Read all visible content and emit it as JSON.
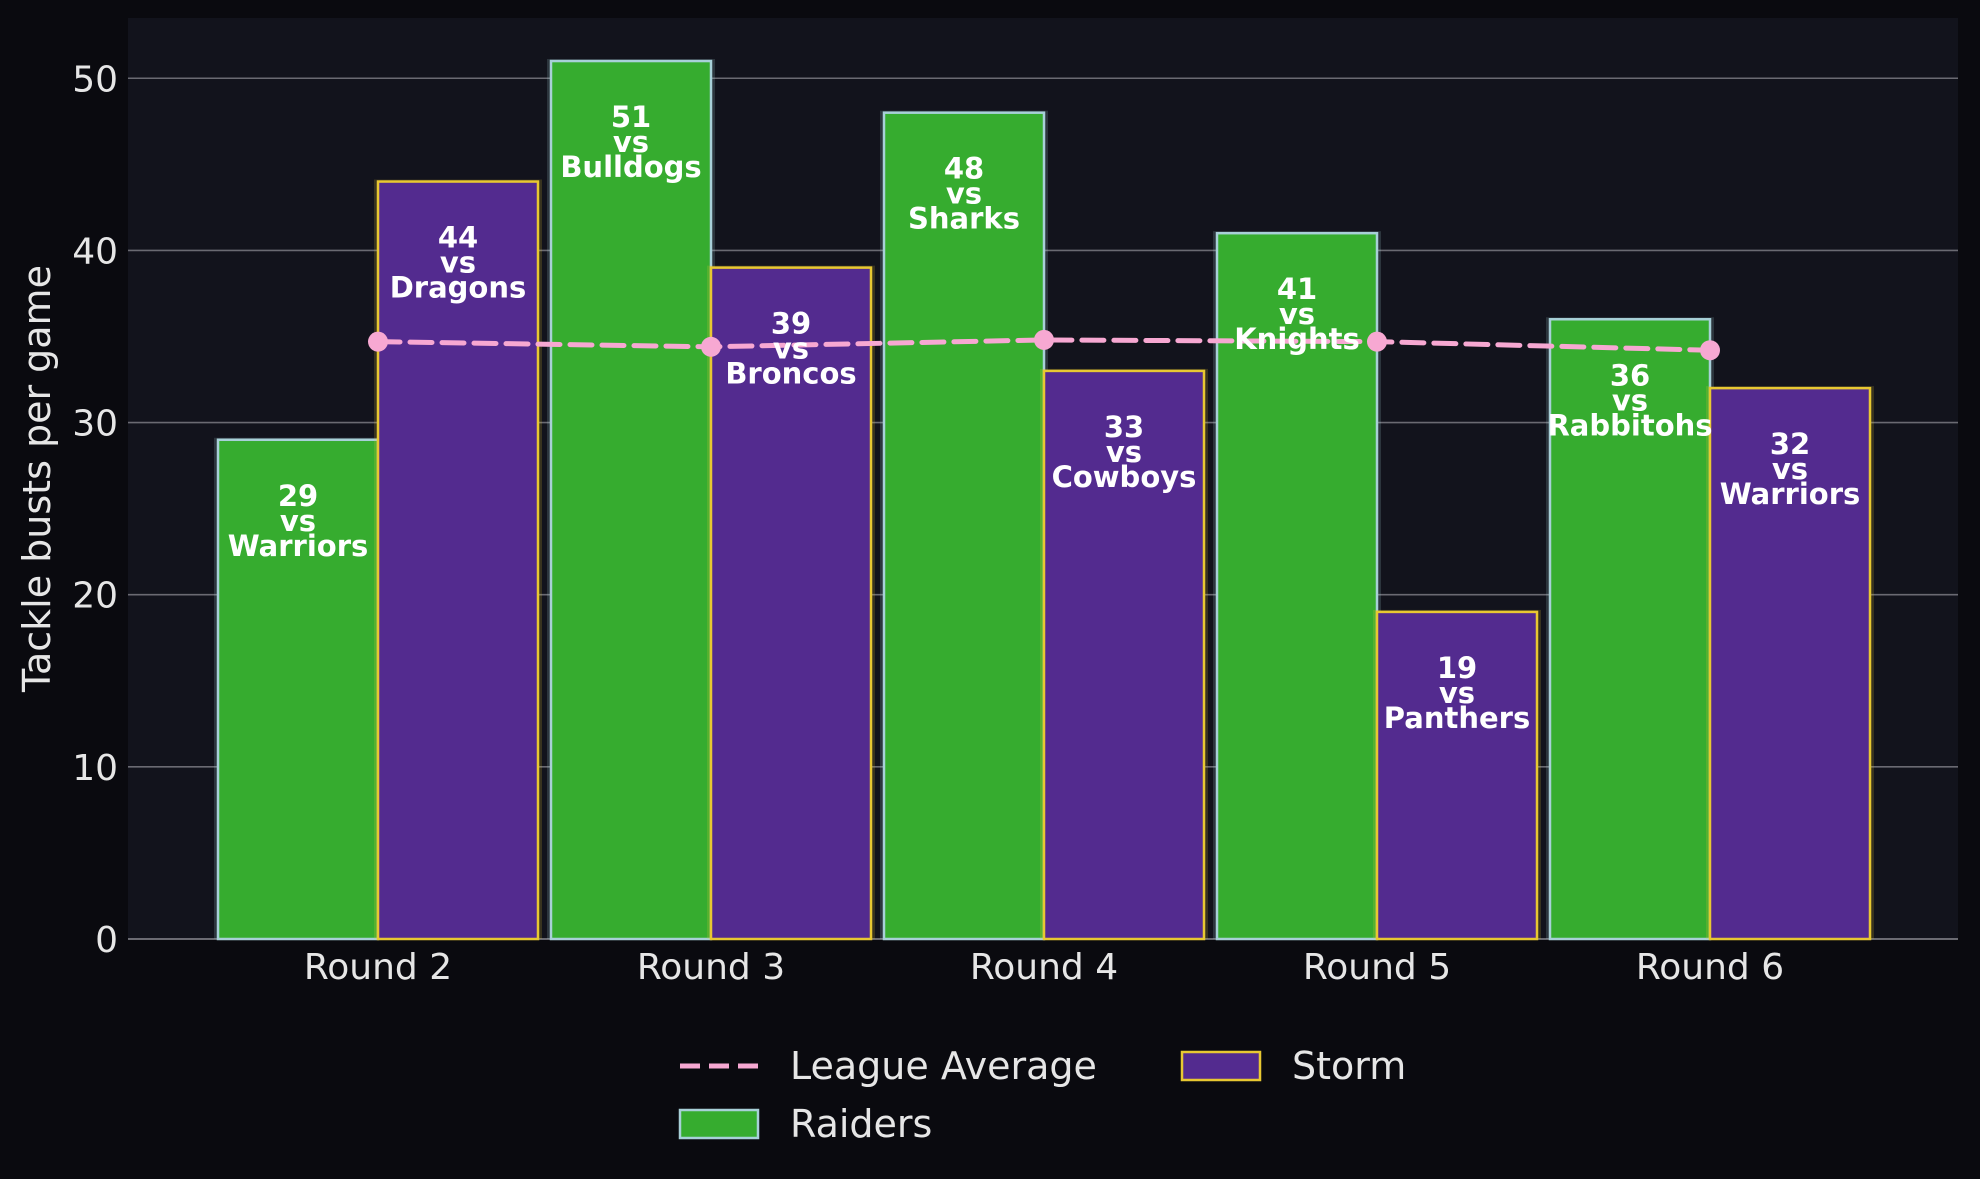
{
  "chart_data": {
    "type": "bar",
    "categories": [
      "Round 2",
      "Round 3",
      "Round 4",
      "Round 5",
      "Round 6"
    ],
    "ylabel": "Tackle busts per game",
    "xlabel": "",
    "ylim": [
      0,
      53.5
    ],
    "yticks": [
      0,
      10,
      20,
      30,
      40,
      50
    ],
    "grid": true,
    "legend_position": "bottom-center",
    "series": [
      {
        "name": "Raiders",
        "kind": "bar",
        "color": "#36ac2f",
        "edge_color": "#a8d0d8",
        "values": [
          29,
          51,
          48,
          41,
          36
        ],
        "labels": [
          "29\nvs\nWarriors",
          "51\nvs\nBulldogs",
          "48\nvs\nSharks",
          "41\nvs\nKnights",
          "36\nvs\nRabbitohs"
        ]
      },
      {
        "name": "Storm",
        "kind": "bar",
        "color": "#532b8f",
        "edge_color": "#e8c832",
        "values": [
          44,
          39,
          33,
          19,
          32
        ],
        "labels": [
          "44\nvs\nDragons",
          "39\nvs\nBroncos",
          "33\nvs\nCowboys",
          "19\nvs\nPanthers",
          "32\nvs\nWarriors"
        ]
      },
      {
        "name": "League Average",
        "kind": "line",
        "style": "dashed",
        "color": "#f7a8d2",
        "values": [
          34.7,
          34.4,
          34.8,
          34.7,
          34.2
        ]
      }
    ],
    "legend_order": [
      "League Average",
      "Raiders",
      "Storm"
    ]
  },
  "colors": {
    "background": "#0a0a0f",
    "plot_background": "#12131c",
    "grid": "#6a6a72",
    "text": "#e6e6e6"
  }
}
